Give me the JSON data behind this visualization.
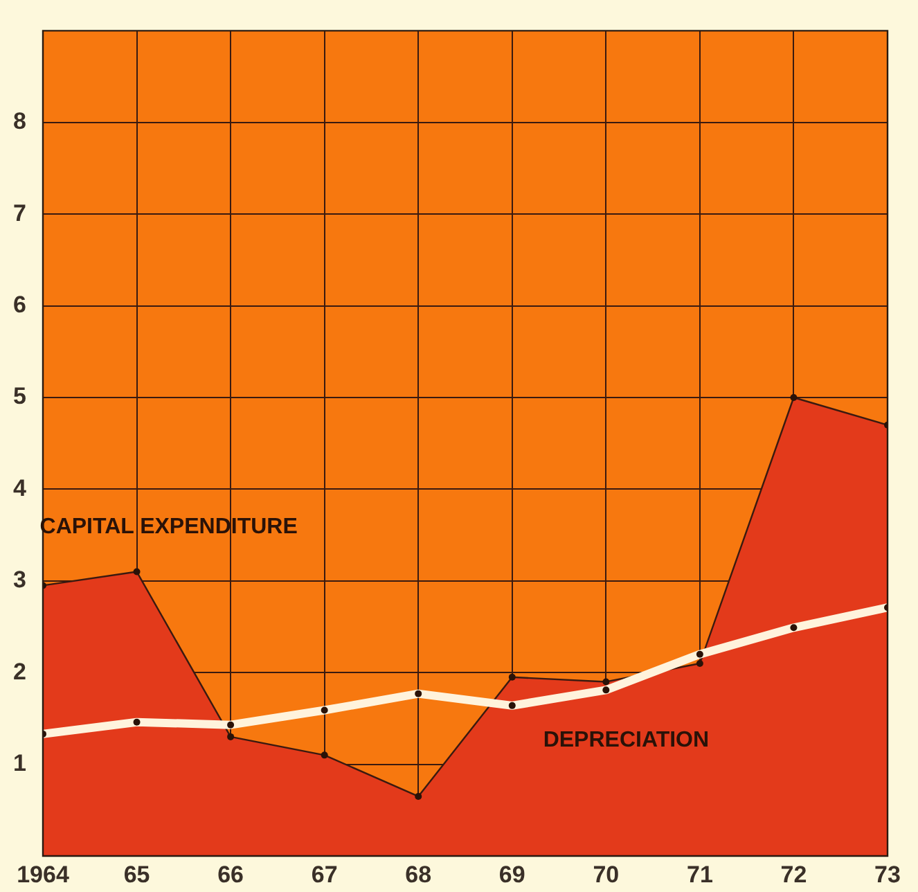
{
  "chart_data": {
    "type": "area",
    "x": [
      1964,
      1965,
      1966,
      1967,
      1968,
      1969,
      1970,
      1971,
      1972,
      1973
    ],
    "series": [
      {
        "color": "#e33a1b",
        "values": [
          2.95,
          3.1,
          1.3,
          1.1,
          0.65,
          1.95,
          1.9,
          2.1,
          5.0,
          4.7
        ]
      },
      {
        "type": "line",
        "color": "#fff3dc",
        "values": [
          1.33,
          1.46,
          1.43,
          1.59,
          1.77,
          1.64,
          1.81,
          2.2,
          2.49,
          2.71
        ]
      }
    ],
    "xlim": [
      1964,
      1973
    ],
    "xticks": [
      {
        "value": 1964,
        "label": "1964"
      },
      {
        "value": 1965,
        "label": "65"
      },
      {
        "value": 1966,
        "label": "66"
      },
      {
        "value": 1967,
        "label": "67"
      },
      {
        "value": 1968,
        "label": "68"
      },
      {
        "value": 1969,
        "label": "69"
      },
      {
        "value": 1970,
        "label": "70"
      },
      {
        "value": 1971,
        "label": "71"
      },
      {
        "value": 1972,
        "label": "72"
      },
      {
        "value": 1973,
        "label": "73"
      }
    ],
    "ylim": [
      0,
      9
    ],
    "yticks": [
      1,
      2,
      3,
      4,
      5,
      6,
      7,
      8
    ],
    "annotations": [
      {
        "text": "CAPITAL EXPENDITURE",
        "x": 1965,
        "y": 3.1
      },
      {
        "text": "DEPRECIATION",
        "x": 1969.7,
        "y": 1.74
      }
    ],
    "grid": true,
    "marker": "circle",
    "legend": false
  }
}
